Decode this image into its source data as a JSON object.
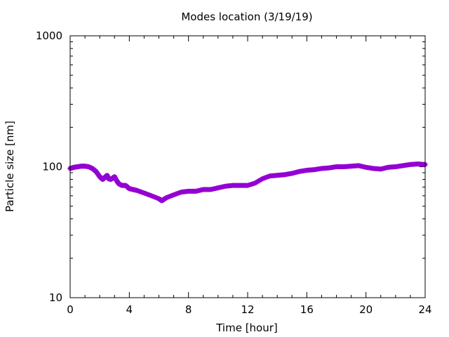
{
  "chart_data": {
    "type": "scatter",
    "title": "Modes location (3/19/19)",
    "xlabel": "Time [hour]",
    "ylabel": "Particle size [nm]",
    "xlim": [
      0,
      24
    ],
    "ylim": [
      10,
      1000
    ],
    "yscale": "log",
    "grid": false,
    "legend": "none",
    "x_ticks": [
      "0",
      "4",
      "8",
      "12",
      "16",
      "20",
      "24"
    ],
    "y_ticks": [
      "10",
      "100",
      "1000"
    ],
    "marker_color": "#9400d3",
    "series": [
      {
        "x": [
          0,
          0.25,
          0.5,
          0.75,
          1.0,
          1.25,
          1.5,
          1.75,
          2.0,
          2.2,
          2.35,
          2.5,
          2.6,
          2.75,
          3.0,
          3.15,
          3.3,
          3.5,
          3.75,
          4.0,
          4.25,
          4.5,
          5.0,
          5.5,
          6.0,
          6.2,
          6.5,
          7.0,
          7.5,
          8.0,
          8.5,
          9.0,
          9.5,
          10.0,
          10.5,
          11.0,
          11.5,
          12.0,
          12.5,
          13.0,
          13.5,
          14.0,
          14.5,
          15.0,
          15.5,
          16.0,
          16.5,
          17.0,
          17.5,
          18.0,
          18.5,
          19.0,
          19.5,
          20.0,
          20.5,
          21.0,
          21.5,
          22.0,
          22.5,
          23.0,
          23.5,
          24.0
        ],
        "y": [
          97,
          99,
          100,
          101,
          101,
          100,
          97,
          92,
          84,
          80,
          83,
          86,
          81,
          80,
          84,
          78,
          74,
          72,
          72,
          68,
          67,
          66,
          63,
          60,
          57,
          55,
          58,
          61,
          64,
          65,
          65,
          67,
          67,
          69,
          71,
          72,
          72,
          72,
          75,
          81,
          85,
          86,
          87,
          89,
          92,
          94,
          95,
          97,
          98,
          100,
          100,
          101,
          102,
          99,
          97,
          96,
          99,
          100,
          102,
          104,
          105,
          104
        ]
      }
    ]
  }
}
